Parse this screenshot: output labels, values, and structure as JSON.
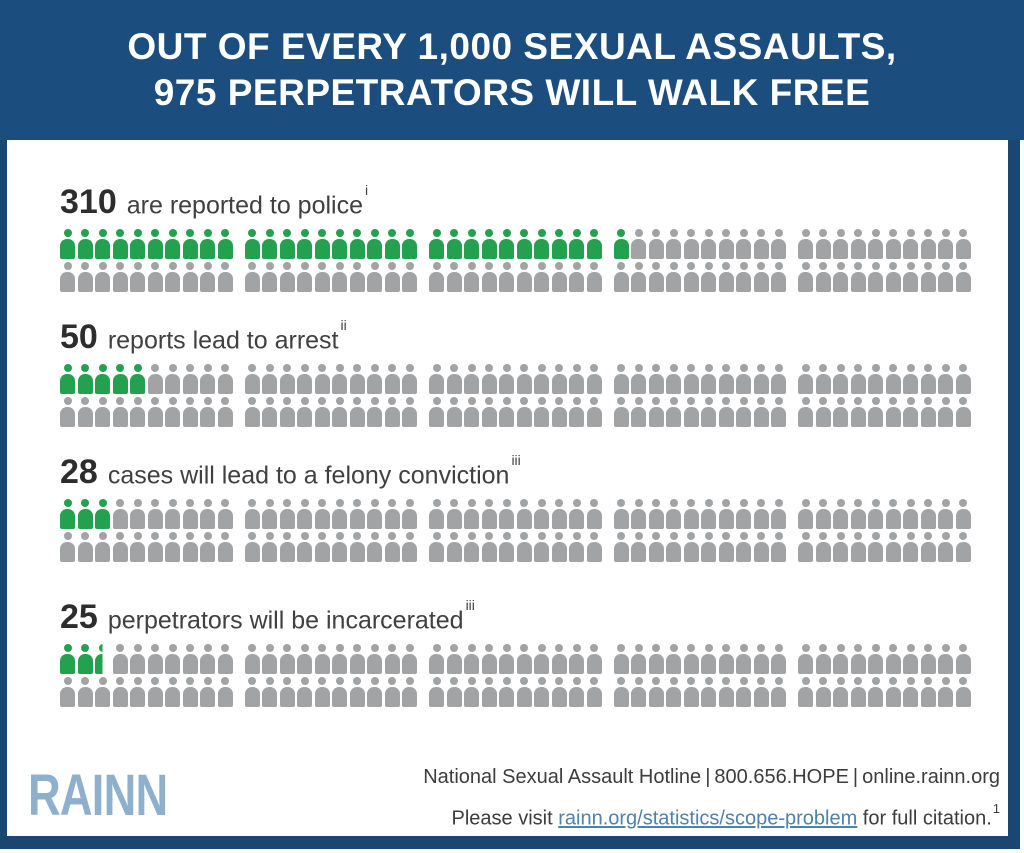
{
  "header": {
    "title_line1": "OUT OF EVERY 1,000 SEXUAL ASSAULTS,",
    "title_line2": "975 PERPETRATORS WILL WALK FREE"
  },
  "sections": [
    {
      "number": "310",
      "label": "are reported to police",
      "footnote": "i",
      "green_icons": 31,
      "half_icon": false
    },
    {
      "number": "50",
      "label": "reports lead to arrest",
      "footnote": "ii",
      "green_icons": 5,
      "half_icon": false
    },
    {
      "number": "28",
      "label": "cases will lead to a felony conviction",
      "footnote": "iii",
      "green_icons": 3,
      "half_icon": false
    },
    {
      "number": "25",
      "label": "perpetrators will be incarcerated",
      "footnote": "iii",
      "green_icons": 2,
      "half_icon": true
    }
  ],
  "footer": {
    "logo": "RAINN",
    "hotline": {
      "part1": "National Sexual Assault Hotline",
      "separator": "|",
      "part2": "800.656.HOPE",
      "part3": "online.rainn.org"
    },
    "citation": {
      "prefix": "Please visit ",
      "link": "rainn.org/statistics/scope-problem",
      "suffix": " for full citation.",
      "superscript": "1"
    }
  },
  "colors": {
    "header_blue": "#1b4d7e",
    "border_blue": "#1a4672",
    "icon_green": "#23a14f",
    "icon_gray": "#a2a3a4",
    "link_blue": "#4e82a8",
    "logo_blue": "#8fb0cc"
  },
  "chart_data": {
    "type": "pictogram",
    "title": "OUT OF EVERY 1,000 SEXUAL ASSAULTS, 975 PERPETRATORS WILL WALK FREE",
    "unit_per_icon": 10,
    "total_population": 1000,
    "categories": [
      "are reported to police",
      "reports lead to arrest",
      "cases will lead to a felony conviction",
      "perpetrators will be incarcerated"
    ],
    "values": [
      310,
      50,
      28,
      25
    ],
    "footnotes": [
      "i",
      "ii",
      "iii",
      "iii"
    ],
    "highlighted_icons_per_section": [
      31,
      5,
      3,
      2.5
    ],
    "layout": {
      "rows_per_section": 2,
      "groups_per_row": 5,
      "icons_per_group": 10,
      "icons_per_section": 100
    },
    "highlight_color": "#23a14f",
    "base_color": "#a2a3a4",
    "legend": "none",
    "source_line": "National Sexual Assault Hotline | 800.656.HOPE | online.rainn.org"
  }
}
